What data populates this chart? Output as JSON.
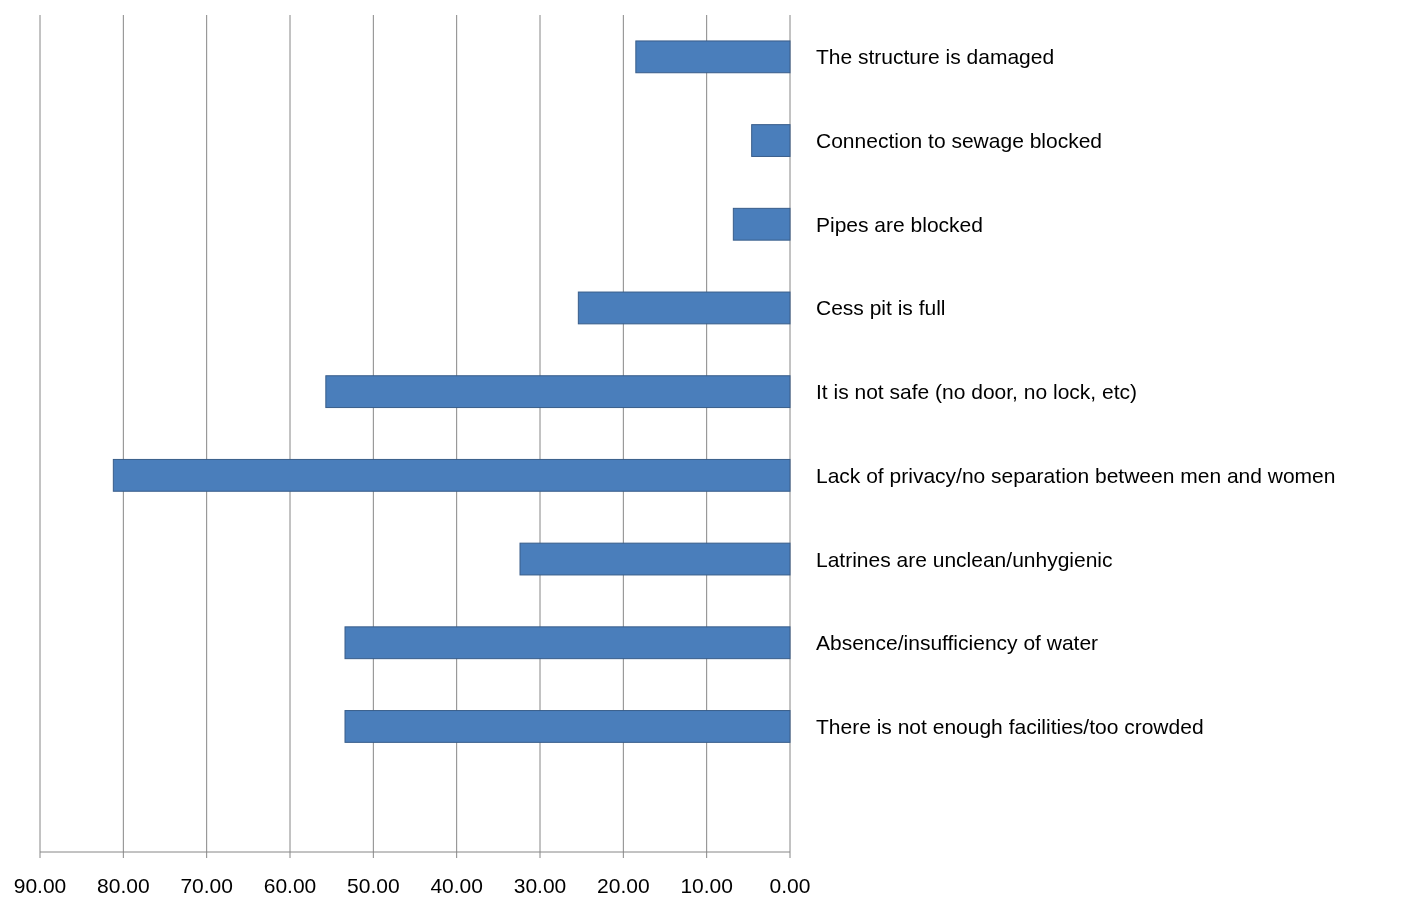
{
  "chart_data": {
    "type": "bar",
    "orientation": "horizontal",
    "categories": [
      "The structure is damaged",
      "Connection to sewage blocked",
      "Pipes are blocked",
      "Cess pit is full",
      "It is not safe (no door, no lock, etc)",
      "Lack of privacy/no separation between men and women",
      "Latrines are unclean/unhygienic",
      "Absence/insufficiency of water",
      "There is not enough facilities/too crowded",
      null
    ],
    "values": [
      18.5,
      4.6,
      6.8,
      25.4,
      55.7,
      81.2,
      32.4,
      53.4,
      53.4,
      null
    ],
    "color": "#4a7ebb",
    "xlim": [
      90,
      0
    ],
    "xticks": [
      {
        "value": 90,
        "label": "90.00"
      },
      {
        "value": 80,
        "label": "80.00"
      },
      {
        "value": 70,
        "label": "70.00"
      },
      {
        "value": 60,
        "label": "60.00"
      },
      {
        "value": 50,
        "label": "50.00"
      },
      {
        "value": 40,
        "label": "40.00"
      },
      {
        "value": 30,
        "label": "30.00"
      },
      {
        "value": 20,
        "label": "20.00"
      },
      {
        "value": 10,
        "label": "10.00"
      },
      {
        "value": 0,
        "label": "0.00"
      }
    ],
    "grid": "x"
  }
}
